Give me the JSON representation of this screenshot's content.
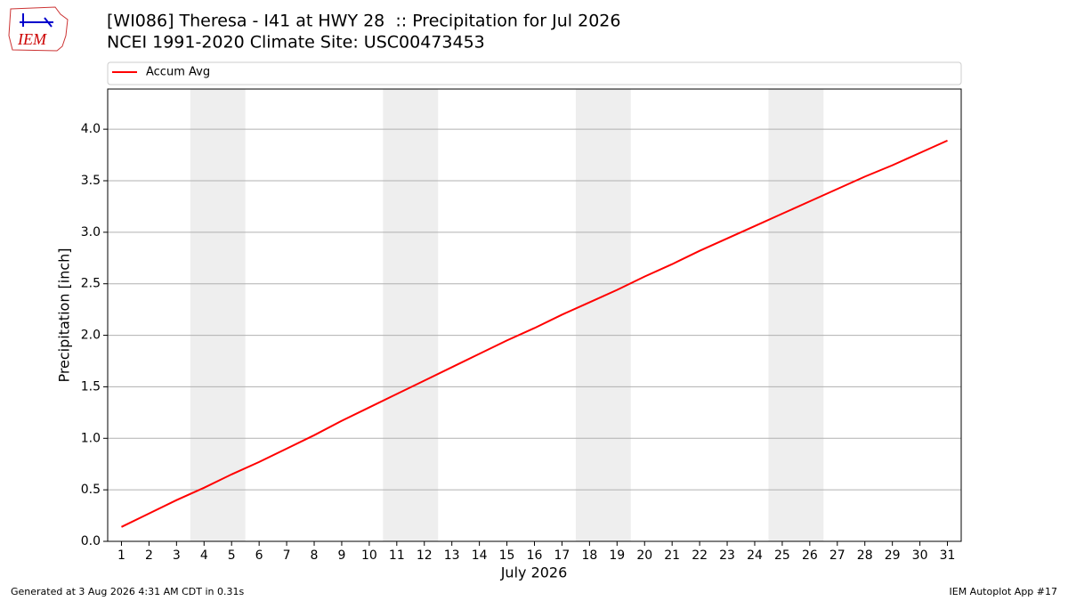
{
  "chart_data": {
    "type": "line",
    "title": "[WI086] Theresa - I41 at HWY 28  :: Precipitation for Jul 2026",
    "subtitle": "NCEI 1991-2020 Climate Site: USC00473453",
    "x_label": "July 2026",
    "y_label": "Precipitation [inch]",
    "x": [
      1,
      2,
      3,
      4,
      5,
      6,
      7,
      8,
      9,
      10,
      11,
      12,
      13,
      14,
      15,
      16,
      17,
      18,
      19,
      20,
      21,
      22,
      23,
      24,
      25,
      26,
      27,
      28,
      29,
      30,
      31
    ],
    "series": [
      {
        "name": "Accum Avg",
        "color": "#ff0000",
        "values": [
          0.14,
          0.27,
          0.4,
          0.52,
          0.65,
          0.77,
          0.9,
          1.03,
          1.17,
          1.3,
          1.43,
          1.56,
          1.69,
          1.82,
          1.95,
          2.07,
          2.2,
          2.32,
          2.44,
          2.57,
          2.69,
          2.82,
          2.94,
          3.06,
          3.18,
          3.3,
          3.42,
          3.54,
          3.65,
          3.77,
          3.89
        ]
      }
    ],
    "xlim": [
      0.5,
      31.5
    ],
    "xticks": [
      1,
      2,
      3,
      4,
      5,
      6,
      7,
      8,
      9,
      10,
      11,
      12,
      13,
      14,
      15,
      16,
      17,
      18,
      19,
      20,
      21,
      22,
      23,
      24,
      25,
      26,
      27,
      28,
      29,
      30,
      31
    ],
    "ylim": [
      0,
      4.39
    ],
    "yticks": [
      {
        "value": 0,
        "label": "0.0"
      },
      0.5,
      {
        "value": 1,
        "label": "1.0"
      },
      1.5,
      {
        "value": 2,
        "label": "2.0"
      },
      2.5,
      {
        "value": 3,
        "label": "3.0"
      },
      3.5,
      {
        "value": 4,
        "label": "4.0"
      }
    ],
    "shaded_spans": [
      [
        3.5,
        5.5
      ],
      [
        10.5,
        12.5
      ],
      [
        17.5,
        19.5
      ],
      [
        24.5,
        26.5
      ]
    ],
    "shade_color": "#eeeeee",
    "grid": true,
    "legend": "top"
  },
  "logo_text": "IEM",
  "footer_left": "Generated at 3 Aug 2026 4:31 AM CDT in 0.31s",
  "footer_right": "IEM Autoplot App #17"
}
